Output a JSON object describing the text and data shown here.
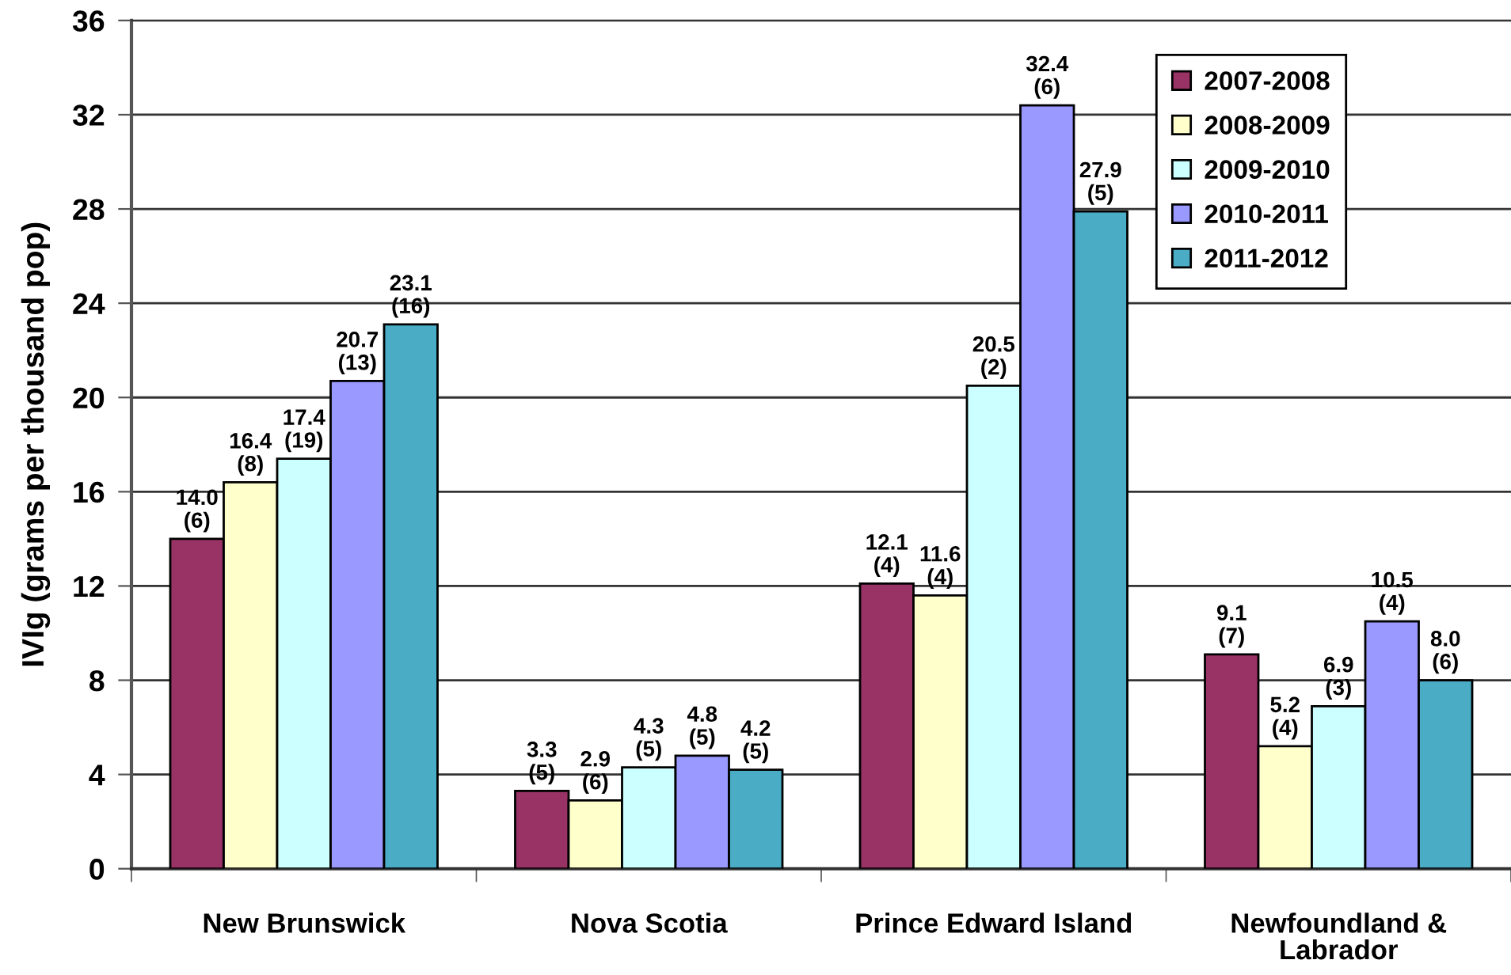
{
  "chart_data": {
    "type": "bar",
    "ylabel": "IVIg (grams per thousand pop)",
    "categories": [
      "New Brunswick",
      "Nova Scotia",
      "Prince Edward Island",
      "Newfoundland &\nLabrador"
    ],
    "series": [
      {
        "name": "2007-2008",
        "color": "#993366",
        "values": [
          14.0,
          3.3,
          12.1,
          9.1
        ],
        "value_labels": [
          "14.0\n(6)",
          "3.3\n(5)",
          "12.1\n(4)",
          "9.1\n(7)"
        ]
      },
      {
        "name": "2008-2009",
        "color": "#ffffcc",
        "values": [
          16.4,
          2.9,
          11.6,
          5.2
        ],
        "value_labels": [
          "16.4\n(8)",
          "2.9\n(6)",
          "11.6\n(4)",
          "5.2\n(4)"
        ]
      },
      {
        "name": "2009-2010",
        "color": "#ccffff",
        "values": [
          17.4,
          4.3,
          20.5,
          6.9
        ],
        "value_labels": [
          "17.4\n(19)",
          "4.3\n(5)",
          "20.5\n(2)",
          "6.9\n(3)"
        ]
      },
      {
        "name": "2010-2011",
        "color": "#9999ff",
        "values": [
          20.7,
          4.8,
          32.4,
          10.5
        ],
        "value_labels": [
          "20.7\n(13)",
          "4.8\n(5)",
          "32.4\n(6)",
          "10.5\n(4)"
        ]
      },
      {
        "name": "2011-2012",
        "color": "#4bacc6",
        "values": [
          23.1,
          4.2,
          27.9,
          8.0
        ],
        "value_labels": [
          "23.1\n(16)",
          "4.2\n(5)",
          "27.9\n(5)",
          "8.0\n(6)"
        ]
      }
    ],
    "ylim": [
      0,
      36
    ],
    "yticks": [
      0,
      4,
      8,
      12,
      16,
      20,
      24,
      28,
      32,
      36
    ],
    "grid": "y",
    "legend": "top right"
  }
}
